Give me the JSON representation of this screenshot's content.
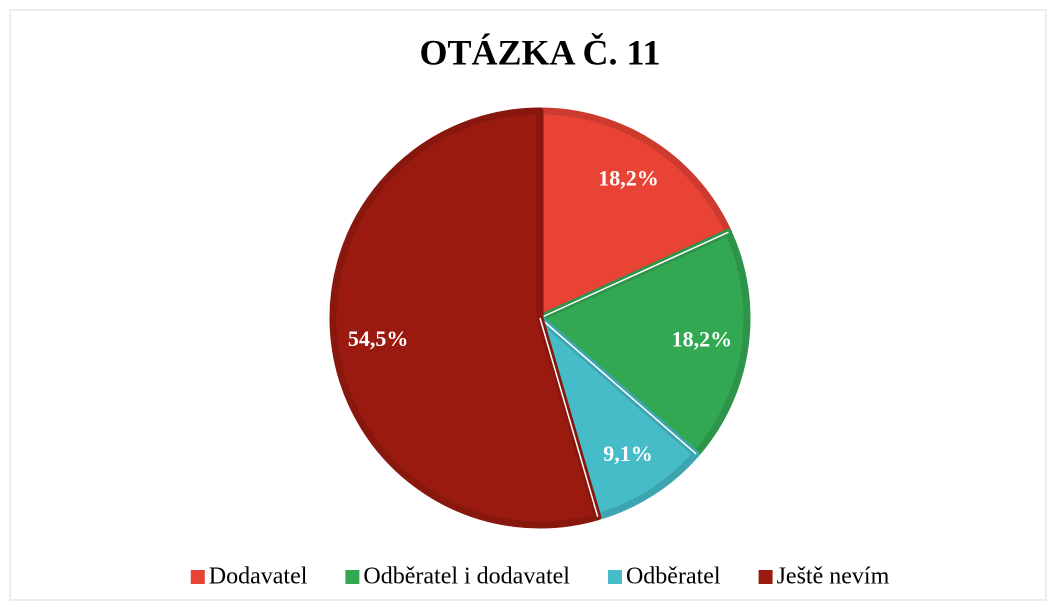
{
  "chart_data": {
    "type": "pie",
    "title": "OTÁZKA Č. 11",
    "categories": [
      "Dodavatel",
      "Odběratel i dodavatel",
      "Odběratel",
      "Ještě nevím"
    ],
    "values": [
      18.2,
      18.2,
      9.1,
      54.5
    ],
    "value_labels": [
      "18,2%",
      "18,2%",
      "9,1%",
      "54,5%"
    ],
    "colors": [
      "#e94335",
      "#33a853",
      "#45bcc7",
      "#9b1a10"
    ]
  }
}
